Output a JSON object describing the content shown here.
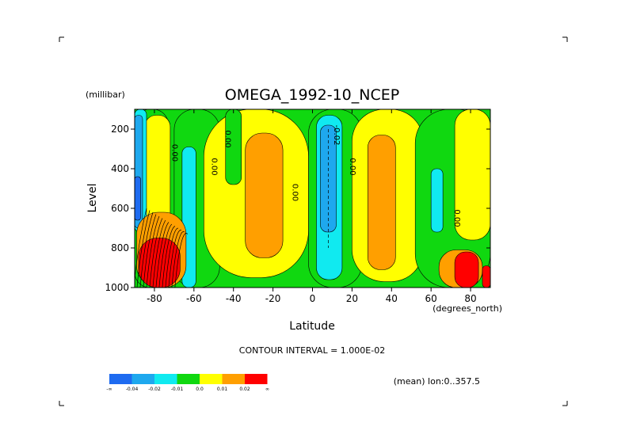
{
  "chart_data": {
    "type": "heatmap",
    "title": "OMEGA_1992-10_NCEP",
    "xlabel": "Latitude",
    "ylabel": "Level",
    "x_units": "(degrees_north)",
    "y_units": "(millibar)",
    "xlim": [
      -90,
      90
    ],
    "ylim": [
      1000,
      100
    ],
    "x_ticks": [
      "-80",
      "-60",
      "-40",
      "-20",
      "0",
      "20",
      "40",
      "60",
      "80"
    ],
    "x_tick_values": [
      -80,
      -60,
      -40,
      -20,
      0,
      20,
      40,
      60,
      80
    ],
    "y_ticks": [
      "200",
      "400",
      "600",
      "800",
      "1000"
    ],
    "y_tick_values": [
      200,
      400,
      600,
      800,
      1000
    ],
    "contour_interval_text": "CONTOUR INTERVAL = 1.000E-02",
    "mean_text": "(mean) lon:0..357.5",
    "contour_labels": [
      {
        "text": "0.00",
        "lat": -71,
        "lev": 320
      },
      {
        "text": "0.00",
        "lat": -51,
        "lev": 390
      },
      {
        "text": "0.00",
        "lat": -44,
        "lev": 250
      },
      {
        "text": "0.00",
        "lat": -10,
        "lev": 520
      },
      {
        "text": "-0.02",
        "lat": 11,
        "lev": 230
      },
      {
        "text": "0.00",
        "lat": 19,
        "lev": 390
      },
      {
        "text": "0.00",
        "lat": 72,
        "lev": 650
      }
    ],
    "colorbar": {
      "colors": [
        "#1e6bf0",
        "#1ea8ee",
        "#10eaf0",
        "#10d810",
        "#ffff00",
        "#ff9f00",
        "#ff0000"
      ],
      "labels": [
        "-∞",
        "-0.04",
        "-0.02",
        "-0.01",
        "0.0",
        "0.01",
        "0.02",
        "∞"
      ]
    },
    "regions": [
      {
        "name": "green-sp",
        "color": "#10d810",
        "lat": [
          -90,
          -73
        ],
        "lev": [
          100,
          1000
        ]
      },
      {
        "name": "yellow-sp",
        "color": "#ffff00",
        "lat": [
          -85,
          -72
        ],
        "lev": [
          130,
          1000
        ]
      },
      {
        "name": "green-sh-mid",
        "color": "#10d810",
        "lat": [
          -70,
          -47
        ],
        "lev": [
          100,
          1000
        ]
      },
      {
        "name": "yellow-sh-sub",
        "color": "#ffff00",
        "lat": [
          -55,
          -2
        ],
        "lev": [
          100,
          950
        ]
      },
      {
        "name": "green-sh-sub",
        "color": "#10d810",
        "lat": [
          -44,
          -36
        ],
        "lev": [
          100,
          480
        ]
      },
      {
        "name": "orange-sh-sub",
        "color": "#ff9f00",
        "lat": [
          -34,
          -15
        ],
        "lev": [
          220,
          850
        ]
      },
      {
        "name": "green-eq",
        "color": "#10d810",
        "lat": [
          -2,
          25
        ],
        "lev": [
          100,
          1000
        ]
      },
      {
        "name": "yellow-nh-sub",
        "color": "#ffff00",
        "lat": [
          20,
          56
        ],
        "lev": [
          100,
          970
        ]
      },
      {
        "name": "orange-nh-sub",
        "color": "#ff9f00",
        "lat": [
          28,
          42
        ],
        "lev": [
          230,
          910
        ]
      },
      {
        "name": "green-nh-mid",
        "color": "#10d810",
        "lat": [
          52,
          90
        ],
        "lev": [
          100,
          1000
        ]
      },
      {
        "name": "yellow-nh-high",
        "color": "#ffff00",
        "lat": [
          72,
          90
        ],
        "lev": [
          100,
          760
        ]
      },
      {
        "name": "cyan-eq",
        "color": "#10eaf0",
        "lat": [
          2,
          15
        ],
        "lev": [
          130,
          960
        ]
      },
      {
        "name": "blue-eq",
        "color": "#1ea8ee",
        "lat": [
          4,
          12
        ],
        "lev": [
          180,
          720
        ]
      },
      {
        "name": "cyan-sh",
        "color": "#10eaf0",
        "lat": [
          -66,
          -59
        ],
        "lev": [
          290,
          1000
        ]
      },
      {
        "name": "cyan-nh",
        "color": "#10eaf0",
        "lat": [
          60,
          66
        ],
        "lev": [
          400,
          720
        ]
      },
      {
        "name": "cyan-sp",
        "color": "#10eaf0",
        "lat": [
          -90,
          -84
        ],
        "lev": [
          100,
          720
        ]
      },
      {
        "name": "blue-sp",
        "color": "#1ea8ee",
        "lat": [
          -90,
          -86
        ],
        "lev": [
          130,
          700
        ]
      },
      {
        "name": "deep-blue-sp",
        "color": "#1e6bf0",
        "lat": [
          -90,
          -87
        ],
        "lev": [
          440,
          660
        ]
      },
      {
        "name": "orange-sp",
        "color": "#ff9f00",
        "lat": [
          -89,
          -64
        ],
        "lev": [
          620,
          1000
        ]
      },
      {
        "name": "red-sp",
        "color": "#ff0000",
        "lat": [
          -88,
          -67
        ],
        "lev": [
          750,
          1000
        ]
      },
      {
        "name": "orange-arctic",
        "color": "#ff9f00",
        "lat": [
          64,
          86
        ],
        "lev": [
          810,
          1000
        ]
      },
      {
        "name": "red-arctic",
        "color": "#ff0000",
        "lat": [
          72,
          84
        ],
        "lev": [
          820,
          1000
        ]
      },
      {
        "name": "red-np-edge",
        "color": "#ff0000",
        "lat": [
          86,
          90
        ],
        "lev": [
          890,
          1000
        ]
      }
    ]
  }
}
